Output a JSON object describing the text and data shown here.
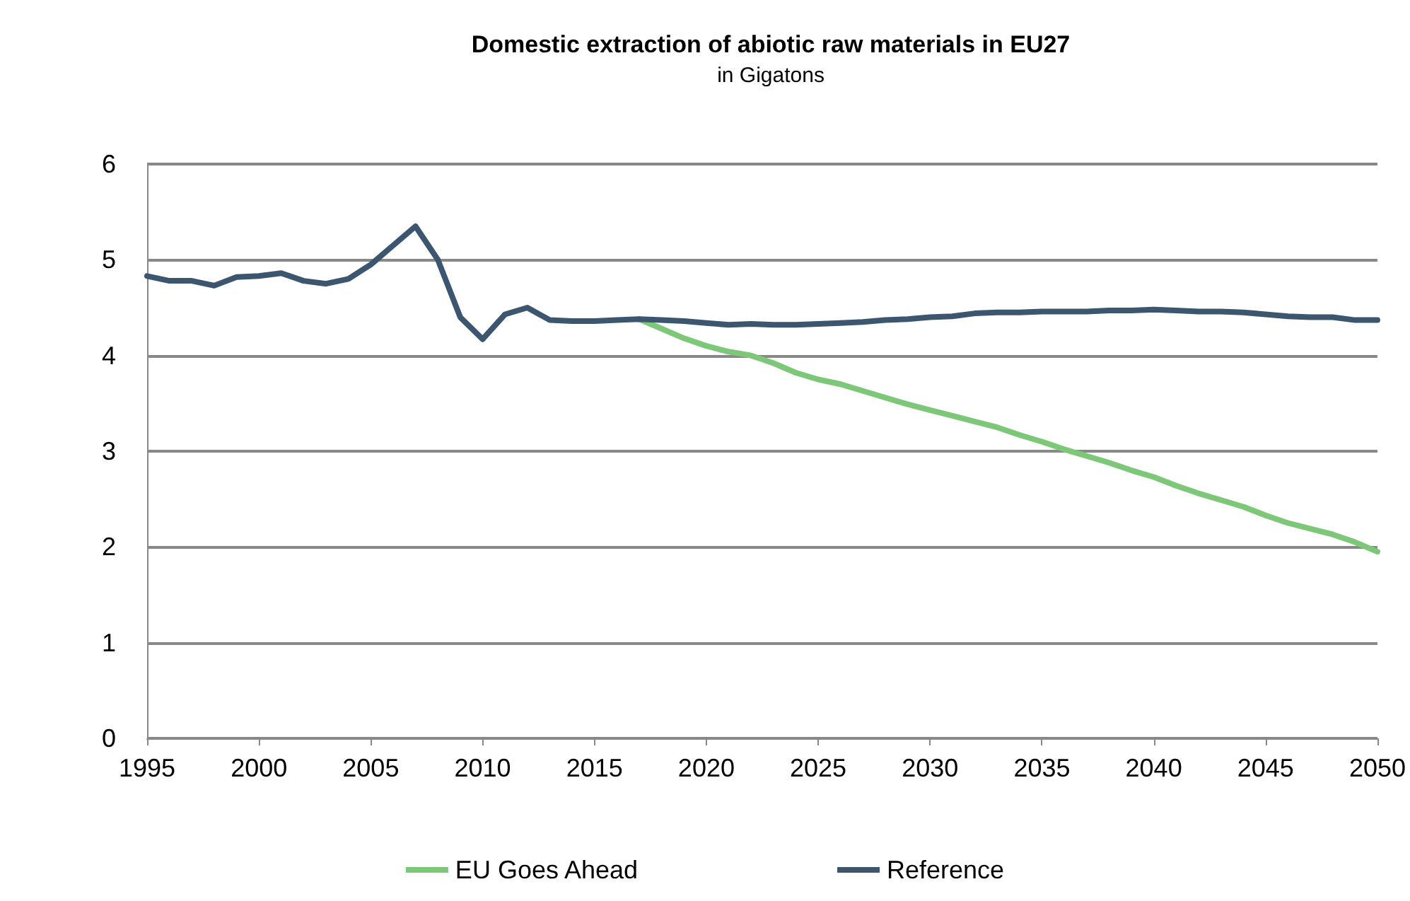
{
  "chart_data": {
    "type": "line",
    "title": "Domestic extraction of abiotic raw materials in EU27",
    "subtitle": "in Gigatons",
    "xlim": [
      1995,
      2050
    ],
    "xticks": [
      1995,
      2000,
      2005,
      2010,
      2015,
      2020,
      2025,
      2030,
      2035,
      2040,
      2045,
      2050
    ],
    "ylim": [
      0,
      6
    ],
    "yticks": [
      0,
      1,
      2,
      3,
      4,
      5,
      6
    ],
    "grid": "y",
    "legend": "bottom",
    "marker": "none",
    "line_style": "solid",
    "series": [
      {
        "name": "EU Goes Ahead",
        "color": "#7dc878",
        "x": [
          2017,
          2018,
          2019,
          2020,
          2021,
          2022,
          2023,
          2024,
          2025,
          2026,
          2027,
          2028,
          2029,
          2030,
          2031,
          2032,
          2033,
          2034,
          2035,
          2036,
          2037,
          2038,
          2039,
          2040,
          2041,
          2042,
          2043,
          2044,
          2045,
          2046,
          2047,
          2048,
          2049,
          2050
        ],
        "values": [
          4.38,
          4.28,
          4.18,
          4.1,
          4.04,
          4.0,
          3.92,
          3.82,
          3.75,
          3.7,
          3.63,
          3.56,
          3.49,
          3.43,
          3.37,
          3.31,
          3.25,
          3.17,
          3.1,
          3.02,
          2.95,
          2.88,
          2.8,
          2.73,
          2.64,
          2.56,
          2.49,
          2.42,
          2.33,
          2.25,
          2.19,
          2.13,
          2.05,
          1.95
        ]
      },
      {
        "name": "Reference",
        "color": "#3d5670",
        "x": [
          1995,
          1996,
          1997,
          1998,
          1999,
          2000,
          2001,
          2002,
          2003,
          2004,
          2005,
          2006,
          2007,
          2008,
          2009,
          2010,
          2011,
          2012,
          2013,
          2014,
          2015,
          2016,
          2017,
          2018,
          2019,
          2020,
          2021,
          2022,
          2023,
          2024,
          2025,
          2026,
          2027,
          2028,
          2029,
          2030,
          2031,
          2032,
          2033,
          2034,
          2035,
          2036,
          2037,
          2038,
          2039,
          2040,
          2041,
          2042,
          2043,
          2044,
          2045,
          2046,
          2047,
          2048,
          2049,
          2050
        ],
        "values": [
          4.83,
          4.78,
          4.78,
          4.73,
          4.82,
          4.83,
          4.86,
          4.78,
          4.75,
          4.8,
          4.95,
          5.15,
          5.35,
          5.0,
          4.4,
          4.17,
          4.43,
          4.5,
          4.37,
          4.36,
          4.36,
          4.37,
          4.38,
          4.37,
          4.36,
          4.34,
          4.32,
          4.33,
          4.32,
          4.32,
          4.33,
          4.34,
          4.35,
          4.37,
          4.38,
          4.4,
          4.41,
          4.44,
          4.45,
          4.45,
          4.46,
          4.46,
          4.46,
          4.47,
          4.47,
          4.48,
          4.47,
          4.46,
          4.46,
          4.45,
          4.43,
          4.41,
          4.4,
          4.4,
          4.37,
          4.37
        ]
      }
    ]
  }
}
